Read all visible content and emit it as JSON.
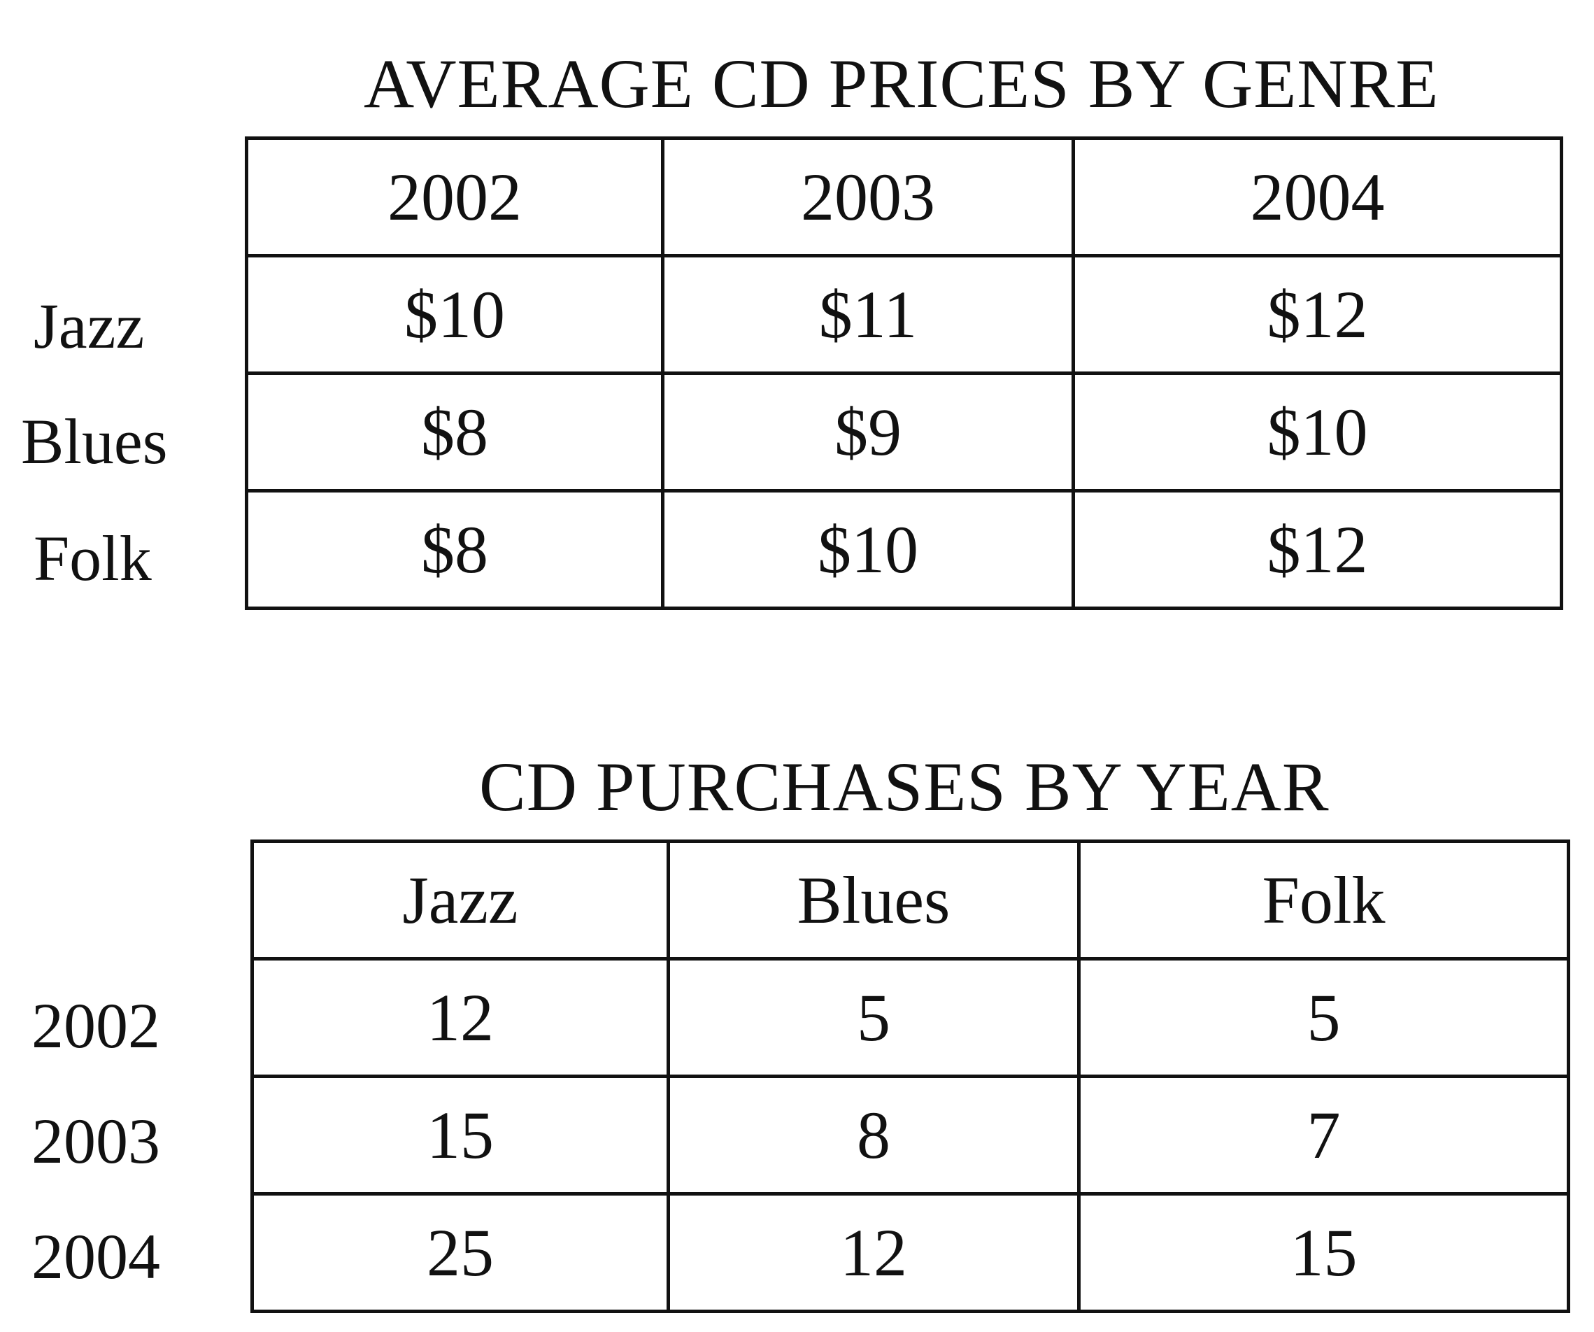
{
  "prices": {
    "title": "AVERAGE CD PRICES BY GENRE",
    "columns": [
      "2002",
      "2003",
      "2004"
    ],
    "rows": [
      {
        "label": "Jazz",
        "values": [
          "$10",
          "$11",
          "$12"
        ]
      },
      {
        "label": "Blues",
        "values": [
          "$8",
          "$9",
          "$10"
        ]
      },
      {
        "label": "Folk",
        "values": [
          "$8",
          "$10",
          "$12"
        ]
      }
    ]
  },
  "purchases": {
    "title": "CD PURCHASES BY YEAR",
    "columns": [
      "Jazz",
      "Blues",
      "Folk"
    ],
    "rows": [
      {
        "label": "2002",
        "values": [
          "12",
          "5",
          "5"
        ]
      },
      {
        "label": "2003",
        "values": [
          "15",
          "8",
          "7"
        ]
      },
      {
        "label": "2004",
        "values": [
          "25",
          "12",
          "15"
        ]
      }
    ]
  }
}
